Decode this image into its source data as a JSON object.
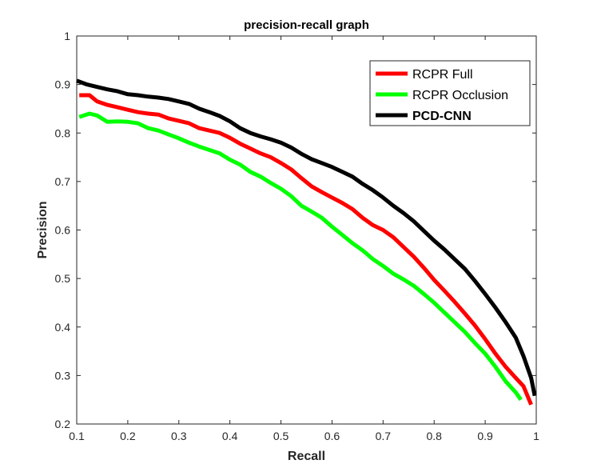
{
  "chart_data": {
    "type": "line",
    "title": "precision-recall graph",
    "xlabel": "Recall",
    "ylabel": "Precision",
    "xlim": [
      0.1,
      1
    ],
    "ylim": [
      0.2,
      1
    ],
    "xticks": [
      "0.1",
      "0.2",
      "0.3",
      "0.4",
      "0.5",
      "0.6",
      "0.7",
      "0.8",
      "0.9",
      "1"
    ],
    "yticks": [
      "0.2",
      "0.3",
      "0.4",
      "0.5",
      "0.6",
      "0.7",
      "0.8",
      "0.9",
      "1"
    ],
    "grid": false,
    "legend_position": "top-right",
    "series": [
      {
        "name": "RCPR Full",
        "color": "#ff0000",
        "bold": false,
        "x": [
          0.105,
          0.125,
          0.14,
          0.16,
          0.18,
          0.2,
          0.22,
          0.24,
          0.26,
          0.28,
          0.3,
          0.32,
          0.34,
          0.36,
          0.38,
          0.4,
          0.42,
          0.44,
          0.46,
          0.48,
          0.5,
          0.52,
          0.54,
          0.56,
          0.58,
          0.6,
          0.62,
          0.64,
          0.66,
          0.68,
          0.7,
          0.72,
          0.74,
          0.76,
          0.78,
          0.8,
          0.82,
          0.84,
          0.86,
          0.88,
          0.9,
          0.92,
          0.94,
          0.96,
          0.975,
          0.99
        ],
        "y": [
          0.878,
          0.878,
          0.865,
          0.858,
          0.853,
          0.848,
          0.843,
          0.84,
          0.838,
          0.83,
          0.825,
          0.82,
          0.81,
          0.805,
          0.8,
          0.79,
          0.778,
          0.768,
          0.758,
          0.75,
          0.738,
          0.725,
          0.707,
          0.69,
          0.678,
          0.667,
          0.656,
          0.643,
          0.625,
          0.61,
          0.6,
          0.585,
          0.565,
          0.545,
          0.522,
          0.497,
          0.475,
          0.452,
          0.428,
          0.403,
          0.375,
          0.345,
          0.318,
          0.295,
          0.278,
          0.24
        ]
      },
      {
        "name": "RCPR Occlusion",
        "color": "#00ff00",
        "bold": false,
        "x": [
          0.105,
          0.125,
          0.14,
          0.16,
          0.18,
          0.2,
          0.22,
          0.24,
          0.26,
          0.28,
          0.3,
          0.32,
          0.34,
          0.36,
          0.38,
          0.4,
          0.42,
          0.44,
          0.46,
          0.48,
          0.5,
          0.52,
          0.54,
          0.56,
          0.58,
          0.6,
          0.62,
          0.64,
          0.66,
          0.68,
          0.7,
          0.72,
          0.74,
          0.76,
          0.78,
          0.8,
          0.82,
          0.84,
          0.86,
          0.88,
          0.9,
          0.92,
          0.94,
          0.96,
          0.97
        ],
        "y": [
          0.833,
          0.84,
          0.836,
          0.823,
          0.824,
          0.823,
          0.82,
          0.81,
          0.805,
          0.797,
          0.789,
          0.78,
          0.772,
          0.765,
          0.758,
          0.745,
          0.735,
          0.72,
          0.71,
          0.697,
          0.685,
          0.67,
          0.65,
          0.638,
          0.625,
          0.607,
          0.59,
          0.573,
          0.558,
          0.54,
          0.526,
          0.51,
          0.498,
          0.485,
          0.468,
          0.45,
          0.43,
          0.41,
          0.39,
          0.367,
          0.345,
          0.318,
          0.288,
          0.265,
          0.25
        ]
      },
      {
        "name": "PCD-CNN",
        "color": "#000000",
        "bold": true,
        "x": [
          0.1,
          0.12,
          0.14,
          0.16,
          0.18,
          0.2,
          0.22,
          0.24,
          0.26,
          0.28,
          0.3,
          0.32,
          0.34,
          0.36,
          0.38,
          0.4,
          0.42,
          0.44,
          0.46,
          0.48,
          0.5,
          0.52,
          0.54,
          0.56,
          0.58,
          0.6,
          0.62,
          0.64,
          0.66,
          0.68,
          0.7,
          0.72,
          0.74,
          0.76,
          0.78,
          0.8,
          0.82,
          0.84,
          0.86,
          0.88,
          0.9,
          0.92,
          0.94,
          0.96,
          0.975,
          0.99,
          0.997
        ],
        "y": [
          0.908,
          0.9,
          0.895,
          0.89,
          0.886,
          0.88,
          0.878,
          0.875,
          0.873,
          0.87,
          0.865,
          0.86,
          0.85,
          0.843,
          0.835,
          0.824,
          0.81,
          0.8,
          0.793,
          0.787,
          0.78,
          0.77,
          0.757,
          0.746,
          0.738,
          0.73,
          0.72,
          0.71,
          0.695,
          0.682,
          0.667,
          0.65,
          0.635,
          0.618,
          0.598,
          0.578,
          0.56,
          0.54,
          0.52,
          0.495,
          0.468,
          0.44,
          0.41,
          0.378,
          0.34,
          0.295,
          0.258
        ]
      }
    ]
  }
}
